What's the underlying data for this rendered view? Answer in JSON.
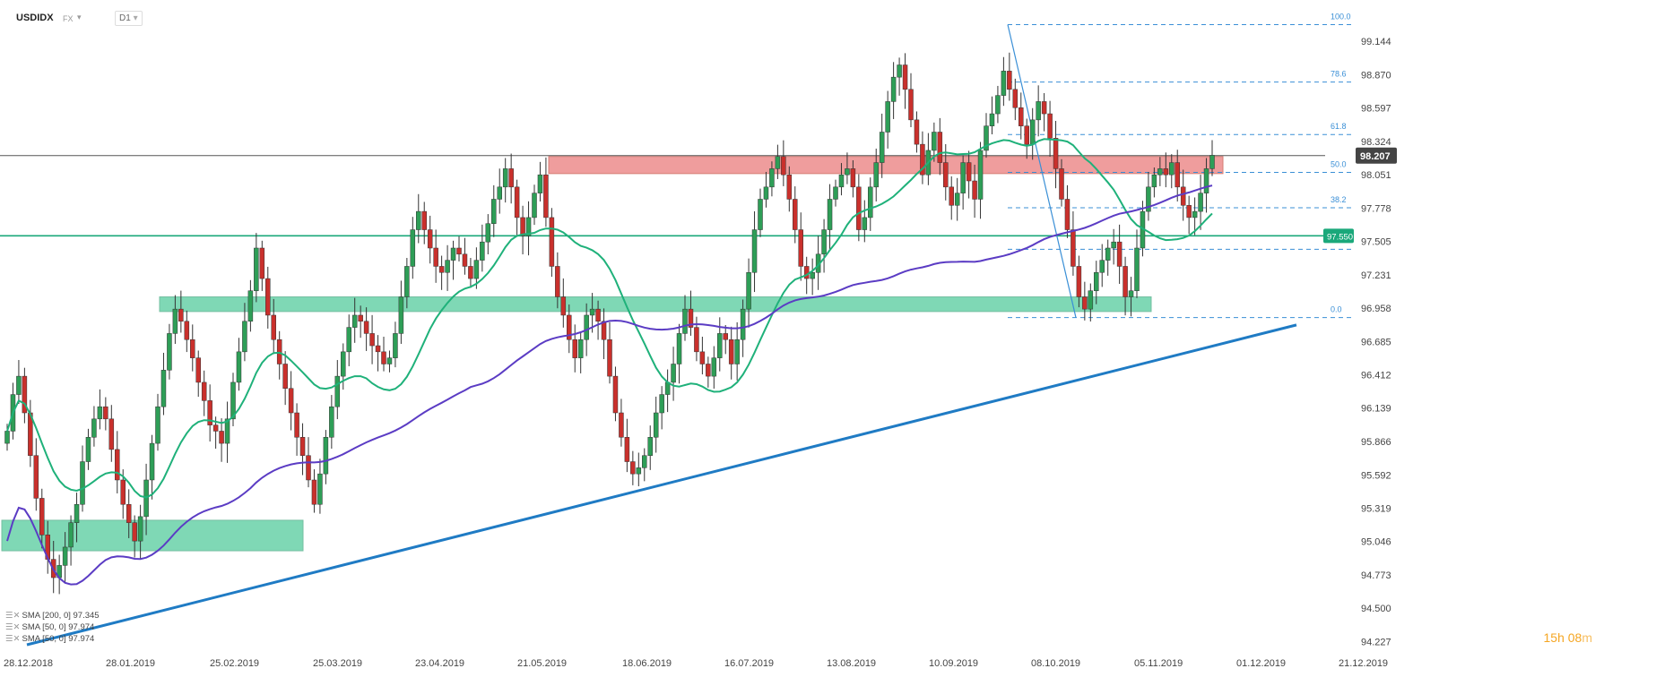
{
  "header": {
    "symbol": "USDIDX",
    "market": "FX",
    "timeframe": "D1"
  },
  "timer": {
    "hours": "15h",
    "minutes": "08",
    "unit": "m"
  },
  "sma_legend": [
    {
      "label": "SMA [200, 0] 97.345"
    },
    {
      "label": "SMA [50, 0] 97.974"
    },
    {
      "label": "SMA [50, 0] 97.974"
    }
  ],
  "colors": {
    "bull": "#2e9e57",
    "bear": "#c9302c",
    "sma50": "#1fb17a",
    "sma200": "#5b3cc4",
    "trendline": "#1f7bc4",
    "fib": "#3a8fd6",
    "resistance_zone": "#e86a6a",
    "support_zone": "#3cc48f"
  },
  "chart_data": {
    "type": "candlestick",
    "instrument": "USDIDX",
    "ylim": [
      94.2,
      99.35
    ],
    "y_ticks": [
      "99.144",
      "98.870",
      "98.597",
      "98.324",
      "98.051",
      "97.778",
      "97.505",
      "97.231",
      "96.958",
      "96.685",
      "96.412",
      "96.139",
      "95.866",
      "95.592",
      "95.319",
      "95.046",
      "94.773",
      "94.500",
      "94.227"
    ],
    "x_ticks": [
      "28.12.2018",
      "28.01.2019",
      "25.02.2019",
      "25.03.2019",
      "23.04.2019",
      "21.05.2019",
      "18.06.2019",
      "16.07.2019",
      "13.08.2019",
      "10.09.2019",
      "08.10.2019",
      "05.11.2019",
      "01.12.2019",
      "21.12.2019"
    ],
    "last_price": "98.207",
    "horizontal_level": "97.550",
    "fib_levels": [
      {
        "label": "100.0",
        "value": 99.28
      },
      {
        "label": "78.6",
        "value": 98.81
      },
      {
        "label": "61.8",
        "value": 98.38
      },
      {
        "label": "50.0",
        "value": 98.07
      },
      {
        "label": "38.2",
        "value": 97.78
      },
      {
        "label": "",
        "value": 97.44
      },
      {
        "label": "0.0",
        "value": 96.88
      }
    ],
    "close_series": [
      95.95,
      96.25,
      96.4,
      96.1,
      95.75,
      95.4,
      95.1,
      94.9,
      94.75,
      94.85,
      95.0,
      95.2,
      95.35,
      95.7,
      95.9,
      96.05,
      96.15,
      96.05,
      95.8,
      95.55,
      95.35,
      95.2,
      95.05,
      95.25,
      95.55,
      95.85,
      96.15,
      96.45,
      96.75,
      96.95,
      96.85,
      96.7,
      96.55,
      96.35,
      96.2,
      96.0,
      95.95,
      95.85,
      96.05,
      96.35,
      96.6,
      96.85,
      97.1,
      97.45,
      97.2,
      96.9,
      96.7,
      96.5,
      96.3,
      96.1,
      95.9,
      95.75,
      95.55,
      95.35,
      95.6,
      95.9,
      96.15,
      96.4,
      96.6,
      96.8,
      96.9,
      96.85,
      96.75,
      96.65,
      96.6,
      96.5,
      96.55,
      96.75,
      97.05,
      97.3,
      97.6,
      97.75,
      97.6,
      97.45,
      97.3,
      97.25,
      97.35,
      97.45,
      97.4,
      97.3,
      97.2,
      97.35,
      97.5,
      97.65,
      97.85,
      97.95,
      98.1,
      97.95,
      97.7,
      97.55,
      97.7,
      97.9,
      98.05,
      97.7,
      97.3,
      97.05,
      96.9,
      96.7,
      96.55,
      96.7,
      96.9,
      96.95,
      96.85,
      96.7,
      96.4,
      96.1,
      95.9,
      95.7,
      95.6,
      95.65,
      95.75,
      95.9,
      96.1,
      96.25,
      96.35,
      96.5,
      96.75,
      96.95,
      96.8,
      96.6,
      96.5,
      96.4,
      96.55,
      96.75,
      96.7,
      96.5,
      96.7,
      96.95,
      97.25,
      97.6,
      97.85,
      97.95,
      98.1,
      98.2,
      98.05,
      97.85,
      97.6,
      97.3,
      97.2,
      97.25,
      97.4,
      97.6,
      97.85,
      97.95,
      98.05,
      98.1,
      97.95,
      97.6,
      97.7,
      97.95,
      98.15,
      98.4,
      98.65,
      98.85,
      98.95,
      98.75,
      98.5,
      98.3,
      98.05,
      98.25,
      98.4,
      98.15,
      97.95,
      97.8,
      97.9,
      98.15,
      98.0,
      97.85,
      98.25,
      98.45,
      98.55,
      98.7,
      98.9,
      98.75,
      98.6,
      98.45,
      98.3,
      98.5,
      98.65,
      98.55,
      98.35,
      98.1,
      97.85,
      97.6,
      97.3,
      97.05,
      96.95,
      97.1,
      97.25,
      97.35,
      97.45,
      97.5,
      97.3,
      97.05,
      97.1,
      97.45,
      97.75,
      97.95,
      98.05,
      98.1,
      98.05,
      98.15,
      97.95,
      97.8,
      97.7,
      97.75,
      97.9,
      98.1,
      98.21
    ]
  }
}
